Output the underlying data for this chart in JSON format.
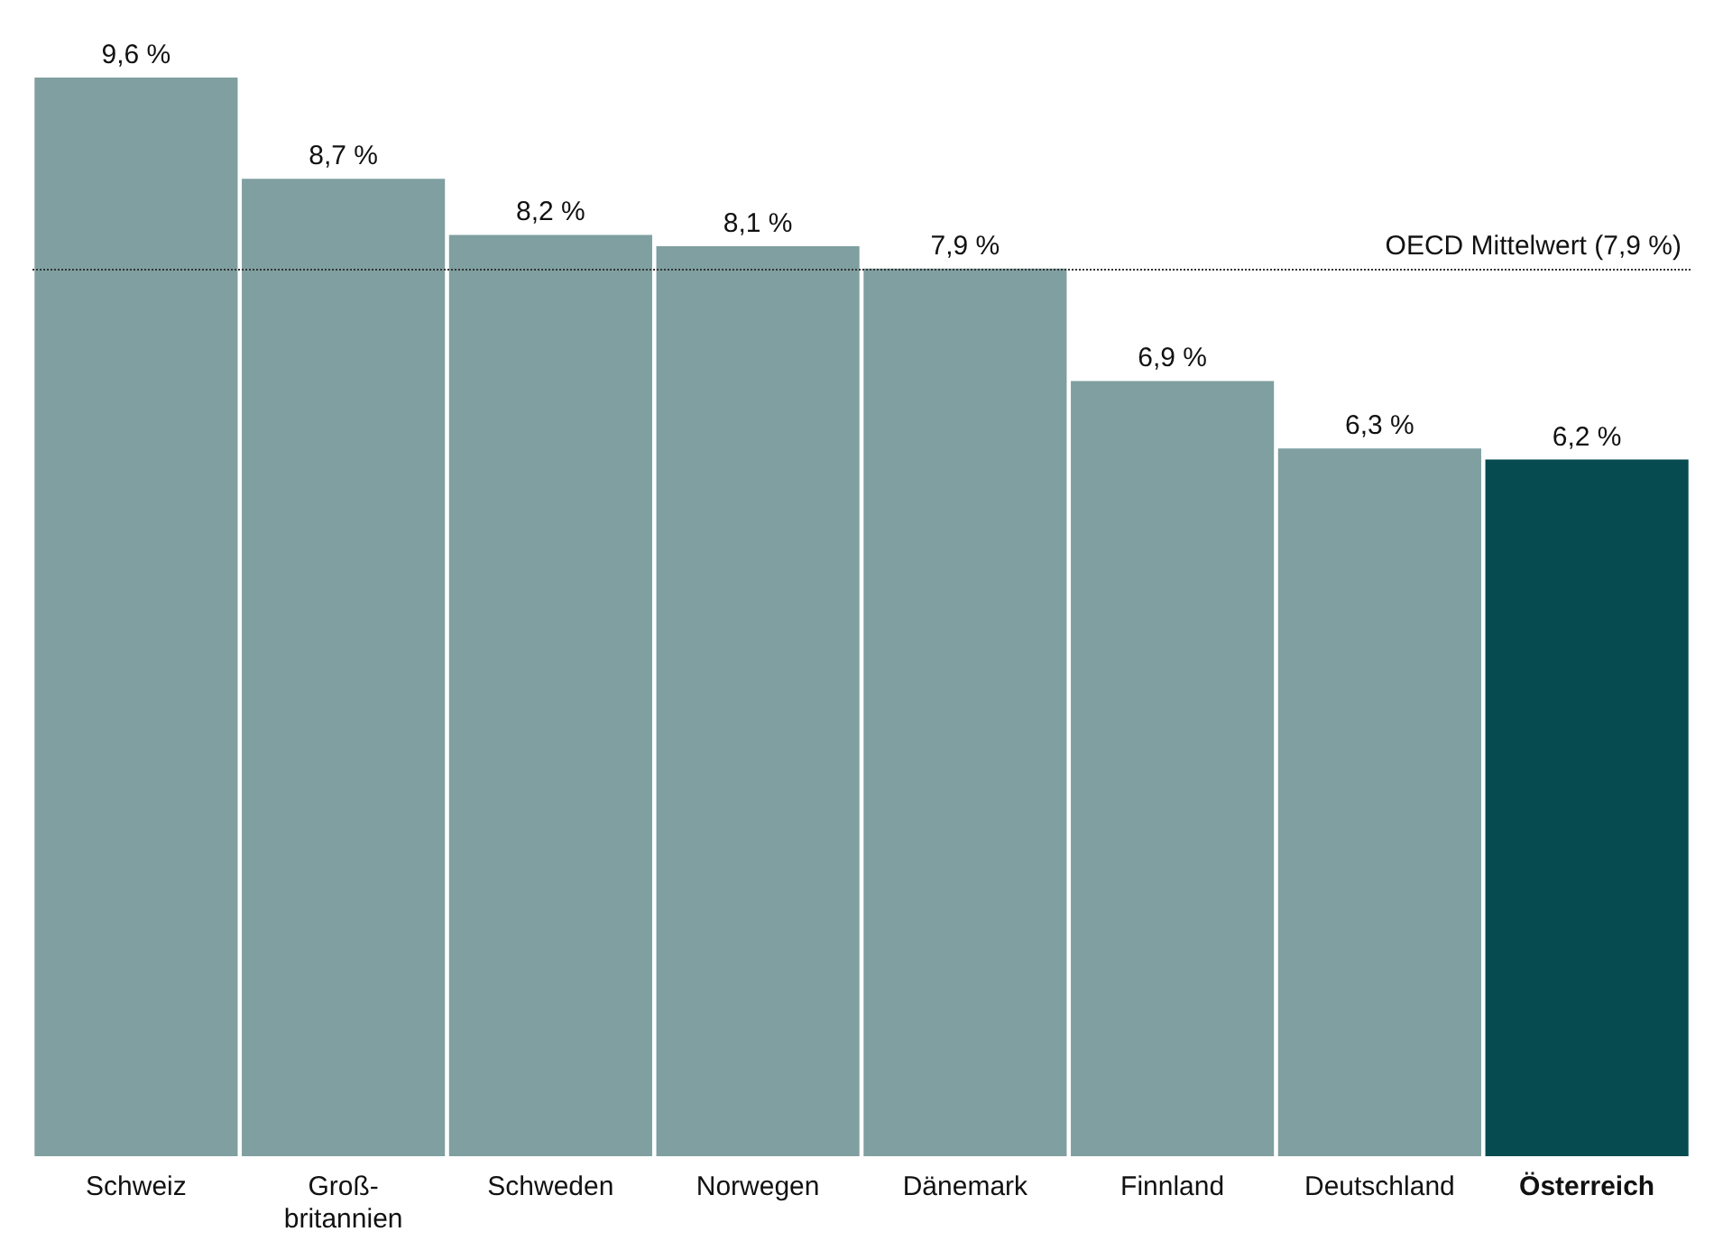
{
  "chart_data": {
    "type": "bar",
    "categories": [
      "Schweiz",
      "Groß-\nbritannien",
      "Schweden",
      "Norwegen",
      "Dänemark",
      "Finnland",
      "Deutschland",
      "Österreich"
    ],
    "values": [
      9.6,
      8.7,
      8.2,
      8.1,
      7.9,
      6.9,
      6.3,
      6.2
    ],
    "value_labels": [
      "9,6 %",
      "8,7 %",
      "8,2 %",
      "8,1 %",
      "7,9 %",
      "6,9 %",
      "6,3 %",
      "6,2 %"
    ],
    "colors": [
      "#7f9fa0",
      "#7f9fa0",
      "#7f9fa0",
      "#7f9fa0",
      "#7f9fa0",
      "#7f9fa0",
      "#7f9fa0",
      "#054b50"
    ],
    "ref_lines": [
      {
        "axis": "y",
        "value": 7.9,
        "label": "OECD Mittelwert (7,9 %)",
        "color": "#333333",
        "line_style": "dotted"
      }
    ]
  }
}
